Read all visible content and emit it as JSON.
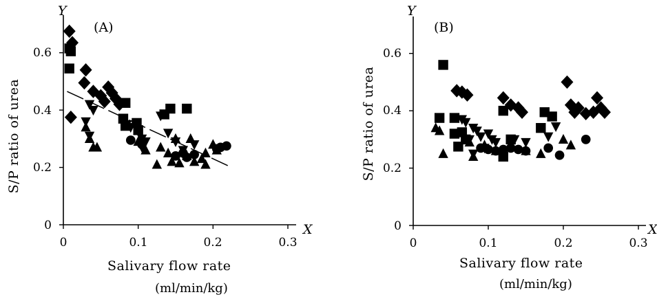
{
  "figure": {
    "colors": {
      "ink": "#000000",
      "background": "#ffffff"
    }
  },
  "chart_data": [
    {
      "type": "scatter",
      "panel_label": "(A)",
      "x_axis_letter": "X",
      "y_axis_letter": "Y",
      "ylabel": "S/P ratio of urea",
      "xlabel": "Salivary flow rate",
      "xunit": "(ml/min/kg)",
      "xlim": [
        0,
        0.3
      ],
      "ylim": [
        0,
        0.7
      ],
      "x_ticks": [
        0,
        0.1,
        0.2,
        0.3
      ],
      "x_tick_labels": [
        "0",
        "0.1",
        "0.2",
        "0.3"
      ],
      "y_ticks": [
        0,
        0.2,
        0.4,
        0.6
      ],
      "y_tick_labels": [
        "0",
        "0.2",
        "0.4",
        "0.6"
      ],
      "grid": false,
      "regression_line": {
        "style": "dashed",
        "points": [
          [
            0.005,
            0.465
          ],
          [
            0.225,
            0.2
          ]
        ]
      },
      "series": [
        {
          "marker": "diamond",
          "points": [
            [
              0.008,
              0.675
            ],
            [
              0.012,
              0.635
            ],
            [
              0.01,
              0.375
            ],
            [
              0.03,
              0.54
            ],
            [
              0.028,
              0.495
            ],
            [
              0.04,
              0.465
            ],
            [
              0.05,
              0.45
            ],
            [
              0.06,
              0.48
            ],
            [
              0.065,
              0.46
            ],
            [
              0.07,
              0.44
            ],
            [
              0.055,
              0.43
            ],
            [
              0.075,
              0.42
            ]
          ]
        },
        {
          "marker": "square",
          "points": [
            [
              0.008,
              0.615
            ],
            [
              0.01,
              0.605
            ],
            [
              0.008,
              0.545
            ],
            [
              0.083,
              0.425
            ],
            [
              0.08,
              0.37
            ],
            [
              0.098,
              0.355
            ],
            [
              0.083,
              0.345
            ],
            [
              0.1,
              0.33
            ],
            [
              0.143,
              0.405
            ],
            [
              0.165,
              0.405
            ],
            [
              0.135,
              0.385
            ]
          ]
        },
        {
          "marker": "triangle-down",
          "points": [
            [
              0.03,
              0.36
            ],
            [
              0.035,
              0.42
            ],
            [
              0.04,
              0.4
            ],
            [
              0.035,
              0.31
            ],
            [
              0.085,
              0.35
            ],
            [
              0.09,
              0.34
            ],
            [
              0.105,
              0.3
            ],
            [
              0.11,
              0.29
            ],
            [
              0.105,
              0.27
            ],
            [
              0.13,
              0.38
            ],
            [
              0.14,
              0.32
            ],
            [
              0.15,
              0.29
            ],
            [
              0.16,
              0.26
            ],
            [
              0.175,
              0.28
            ]
          ]
        },
        {
          "marker": "triangle-up",
          "points": [
            [
              0.03,
              0.34
            ],
            [
              0.035,
              0.3
            ],
            [
              0.04,
              0.27
            ],
            [
              0.045,
              0.27
            ],
            [
              0.1,
              0.29
            ],
            [
              0.11,
              0.26
            ],
            [
              0.125,
              0.21
            ],
            [
              0.13,
              0.27
            ],
            [
              0.14,
              0.25
            ],
            [
              0.145,
              0.22
            ],
            [
              0.15,
              0.3
            ],
            [
              0.155,
              0.215
            ],
            [
              0.165,
              0.24
            ],
            [
              0.17,
              0.3
            ],
            [
              0.175,
              0.22
            ],
            [
              0.185,
              0.23
            ],
            [
              0.19,
              0.25
            ],
            [
              0.2,
              0.28
            ],
            [
              0.205,
              0.26
            ],
            [
              0.19,
              0.21
            ]
          ]
        },
        {
          "marker": "circle",
          "points": [
            [
              0.09,
              0.295
            ],
            [
              0.105,
              0.28
            ],
            [
              0.15,
              0.24
            ],
            [
              0.16,
              0.25
            ],
            [
              0.165,
              0.235
            ],
            [
              0.175,
              0.245
            ],
            [
              0.205,
              0.265
            ],
            [
              0.21,
              0.27
            ],
            [
              0.218,
              0.275
            ]
          ]
        }
      ]
    },
    {
      "type": "scatter",
      "panel_label": "(B)",
      "x_axis_letter": "X",
      "y_axis_letter": "Y",
      "ylabel": "S/P ratio of urea",
      "xlabel": "Salivary flow rate",
      "xunit": "(ml/min/kg)",
      "xlim": [
        0,
        0.3
      ],
      "ylim": [
        0,
        0.7
      ],
      "x_ticks": [
        0,
        0.1,
        0.2,
        0.3
      ],
      "x_tick_labels": [
        "0",
        "0.1",
        "0.2",
        "0.3"
      ],
      "y_ticks": [
        0,
        0.2,
        0.4,
        0.6
      ],
      "y_tick_labels": [
        "0",
        "0.2",
        "0.4",
        "0.6"
      ],
      "grid": false,
      "series": [
        {
          "marker": "diamond",
          "points": [
            [
              0.058,
              0.47
            ],
            [
              0.065,
              0.465
            ],
            [
              0.072,
              0.455
            ],
            [
              0.12,
              0.445
            ],
            [
              0.13,
              0.42
            ],
            [
              0.14,
              0.41
            ],
            [
              0.145,
              0.395
            ],
            [
              0.205,
              0.5
            ],
            [
              0.21,
              0.42
            ],
            [
              0.215,
              0.395
            ],
            [
              0.22,
              0.41
            ],
            [
              0.23,
              0.39
            ],
            [
              0.24,
              0.395
            ],
            [
              0.245,
              0.445
            ],
            [
              0.25,
              0.41
            ],
            [
              0.255,
              0.395
            ]
          ]
        },
        {
          "marker": "square",
          "points": [
            [
              0.04,
              0.56
            ],
            [
              0.035,
              0.375
            ],
            [
              0.055,
              0.375
            ],
            [
              0.055,
              0.32
            ],
            [
              0.065,
              0.325
            ],
            [
              0.06,
              0.275
            ],
            [
              0.07,
              0.3
            ],
            [
              0.12,
              0.4
            ],
            [
              0.13,
              0.3
            ],
            [
              0.12,
              0.24
            ],
            [
              0.175,
              0.395
            ],
            [
              0.185,
              0.38
            ],
            [
              0.17,
              0.34
            ]
          ]
        },
        {
          "marker": "triangle-down",
          "points": [
            [
              0.065,
              0.37
            ],
            [
              0.07,
              0.36
            ],
            [
              0.08,
              0.34
            ],
            [
              0.085,
              0.33
            ],
            [
              0.09,
              0.31
            ],
            [
              0.1,
              0.32
            ],
            [
              0.105,
              0.3
            ],
            [
              0.11,
              0.29
            ],
            [
              0.075,
              0.3
            ],
            [
              0.08,
              0.25
            ],
            [
              0.095,
              0.27
            ],
            [
              0.135,
              0.3
            ],
            [
              0.15,
              0.29
            ],
            [
              0.18,
              0.31
            ],
            [
              0.19,
              0.345
            ]
          ]
        },
        {
          "marker": "triangle-up",
          "points": [
            [
              0.03,
              0.34
            ],
            [
              0.035,
              0.33
            ],
            [
              0.04,
              0.25
            ],
            [
              0.075,
              0.29
            ],
            [
              0.08,
              0.24
            ],
            [
              0.095,
              0.28
            ],
            [
              0.11,
              0.26
            ],
            [
              0.15,
              0.26
            ],
            [
              0.17,
              0.25
            ],
            [
              0.2,
              0.3
            ],
            [
              0.21,
              0.28
            ]
          ]
        },
        {
          "marker": "circle",
          "points": [
            [
              0.09,
              0.27
            ],
            [
              0.1,
              0.265
            ],
            [
              0.11,
              0.26
            ],
            [
              0.12,
              0.265
            ],
            [
              0.13,
              0.27
            ],
            [
              0.14,
              0.265
            ],
            [
              0.15,
              0.26
            ],
            [
              0.18,
              0.27
            ],
            [
              0.195,
              0.245
            ],
            [
              0.23,
              0.3
            ]
          ]
        }
      ]
    }
  ]
}
